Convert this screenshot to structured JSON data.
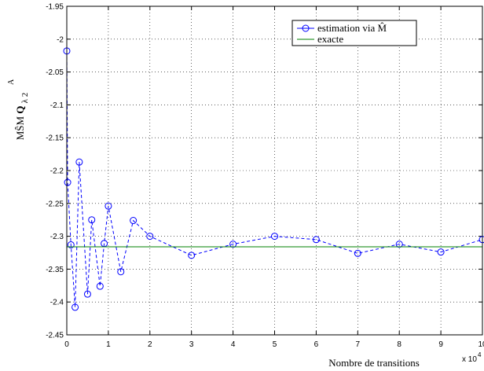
{
  "chart_data": {
    "type": "line",
    "xlabel": "Nombre de transitions",
    "ylabel": "MŜM",
    "ylabel_sub": "Q",
    "ylabel_sub2": "λ 2",
    "ylabel_sup": "A",
    "x_multiplier": "x 10",
    "x_multiplier_exp": "4",
    "xlim": [
      0,
      10
    ],
    "ylim": [
      -2.45,
      -1.95
    ],
    "xticks": [
      0,
      1,
      2,
      3,
      4,
      5,
      6,
      7,
      8,
      9,
      10
    ],
    "yticks": [
      -2.45,
      -2.4,
      -2.35,
      -2.3,
      -2.25,
      -2.2,
      -2.15,
      -2.1,
      -2.05,
      -2,
      -1.95
    ],
    "xtick_labels": [
      "0",
      "1",
      "2",
      "3",
      "4",
      "5",
      "6",
      "7",
      "8",
      "9",
      "10"
    ],
    "ytick_labels": [
      "-2.45",
      "-2.4",
      "-2.35",
      "-2.3",
      "-2.25",
      "-2.2",
      "-2.15",
      "-2.1",
      "-2.05",
      "-2",
      "-1.95"
    ],
    "grid": true,
    "legend_position": "top-right",
    "series": [
      {
        "name": "estimation via M̂",
        "color": "#0000ff",
        "line_style": "dashed",
        "marker": "circle",
        "x": [
          0.0,
          0.02,
          0.1,
          0.2,
          0.3,
          0.5,
          0.6,
          0.8,
          0.9,
          1.0,
          1.3,
          1.6,
          2.0,
          3.0,
          4.0,
          5.0,
          6.0,
          7.0,
          8.0,
          9.0,
          10.0
        ],
        "y": [
          -2.018,
          -2.218,
          -2.313,
          -2.408,
          -2.187,
          -2.388,
          -2.275,
          -2.376,
          -2.311,
          -2.254,
          -2.354,
          -2.276,
          -2.3,
          -2.329,
          -2.312,
          -2.3,
          -2.305,
          -2.326,
          -2.312,
          -2.324,
          -2.305
        ]
      },
      {
        "name": "exacte",
        "color": "#008000",
        "line_style": "solid",
        "marker": "none",
        "x": [
          0,
          10
        ],
        "y": [
          -2.316,
          -2.316
        ]
      }
    ]
  }
}
